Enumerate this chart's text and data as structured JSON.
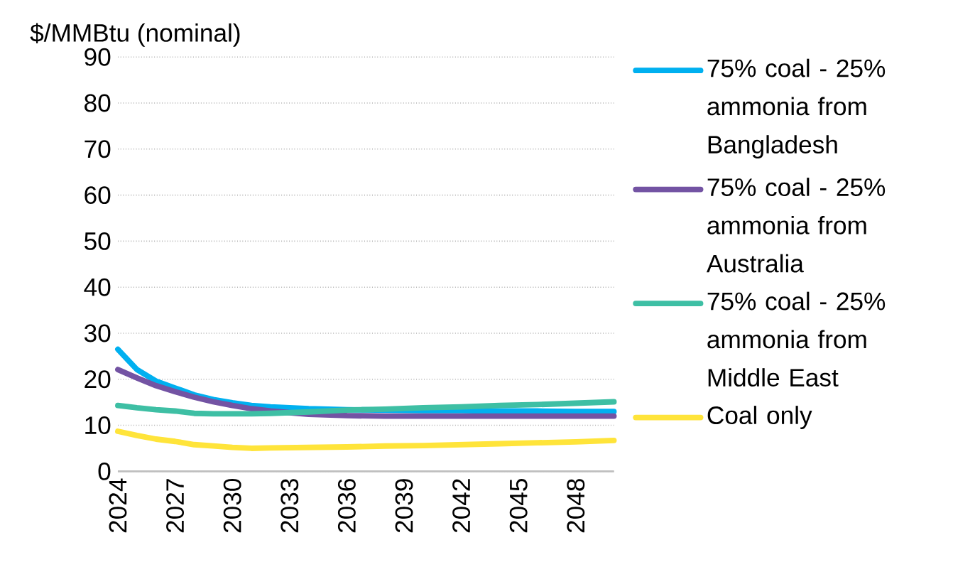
{
  "chart_data": {
    "type": "line",
    "ylabel": "$/MMBtu (nominal)",
    "xlim": [
      2024,
      2050
    ],
    "xticks": [
      2024,
      2027,
      2030,
      2033,
      2036,
      2039,
      2042,
      2045,
      2048
    ],
    "ylim": [
      0,
      90
    ],
    "yticks": [
      0,
      10,
      20,
      30,
      40,
      50,
      60,
      70,
      80,
      90
    ],
    "grid": "y",
    "legend": "right",
    "line_style": "solid",
    "x": [
      2024,
      2025,
      2026,
      2027,
      2028,
      2029,
      2030,
      2031,
      2032,
      2034,
      2036,
      2038,
      2040,
      2042,
      2044,
      2046,
      2048,
      2050
    ],
    "series": [
      {
        "name": "75% coal - 25% ammonia from Bangladesh",
        "color": "#00b0f0",
        "values": [
          26.5,
          22.1,
          19.6,
          18.1,
          16.6,
          15.6,
          14.9,
          14.3,
          14.0,
          13.6,
          13.4,
          13.3,
          13.2,
          13.2,
          13.1,
          13.1,
          13.0,
          13.0
        ]
      },
      {
        "name": "75% coal - 25% ammonia from Australia",
        "color": "#7353a3",
        "values": [
          22.1,
          20.3,
          18.6,
          17.3,
          16.1,
          15.1,
          14.3,
          13.6,
          13.1,
          12.4,
          12.1,
          12.0,
          12.0,
          12.0,
          12.0,
          12.0,
          12.0,
          12.0
        ]
      },
      {
        "name": "75% coal - 25% ammonia from Middle East",
        "color": "#3ebfa4",
        "values": [
          14.3,
          13.8,
          13.4,
          13.1,
          12.6,
          12.5,
          12.5,
          12.5,
          12.6,
          12.9,
          13.3,
          13.5,
          13.8,
          14.0,
          14.3,
          14.5,
          14.8,
          15.1
        ]
      },
      {
        "name": "Coal only",
        "color": "#ffe43a",
        "values": [
          8.7,
          7.8,
          7.0,
          6.5,
          5.8,
          5.5,
          5.2,
          5.0,
          5.1,
          5.2,
          5.3,
          5.5,
          5.6,
          5.8,
          6.0,
          6.2,
          6.4,
          6.7
        ]
      }
    ]
  }
}
